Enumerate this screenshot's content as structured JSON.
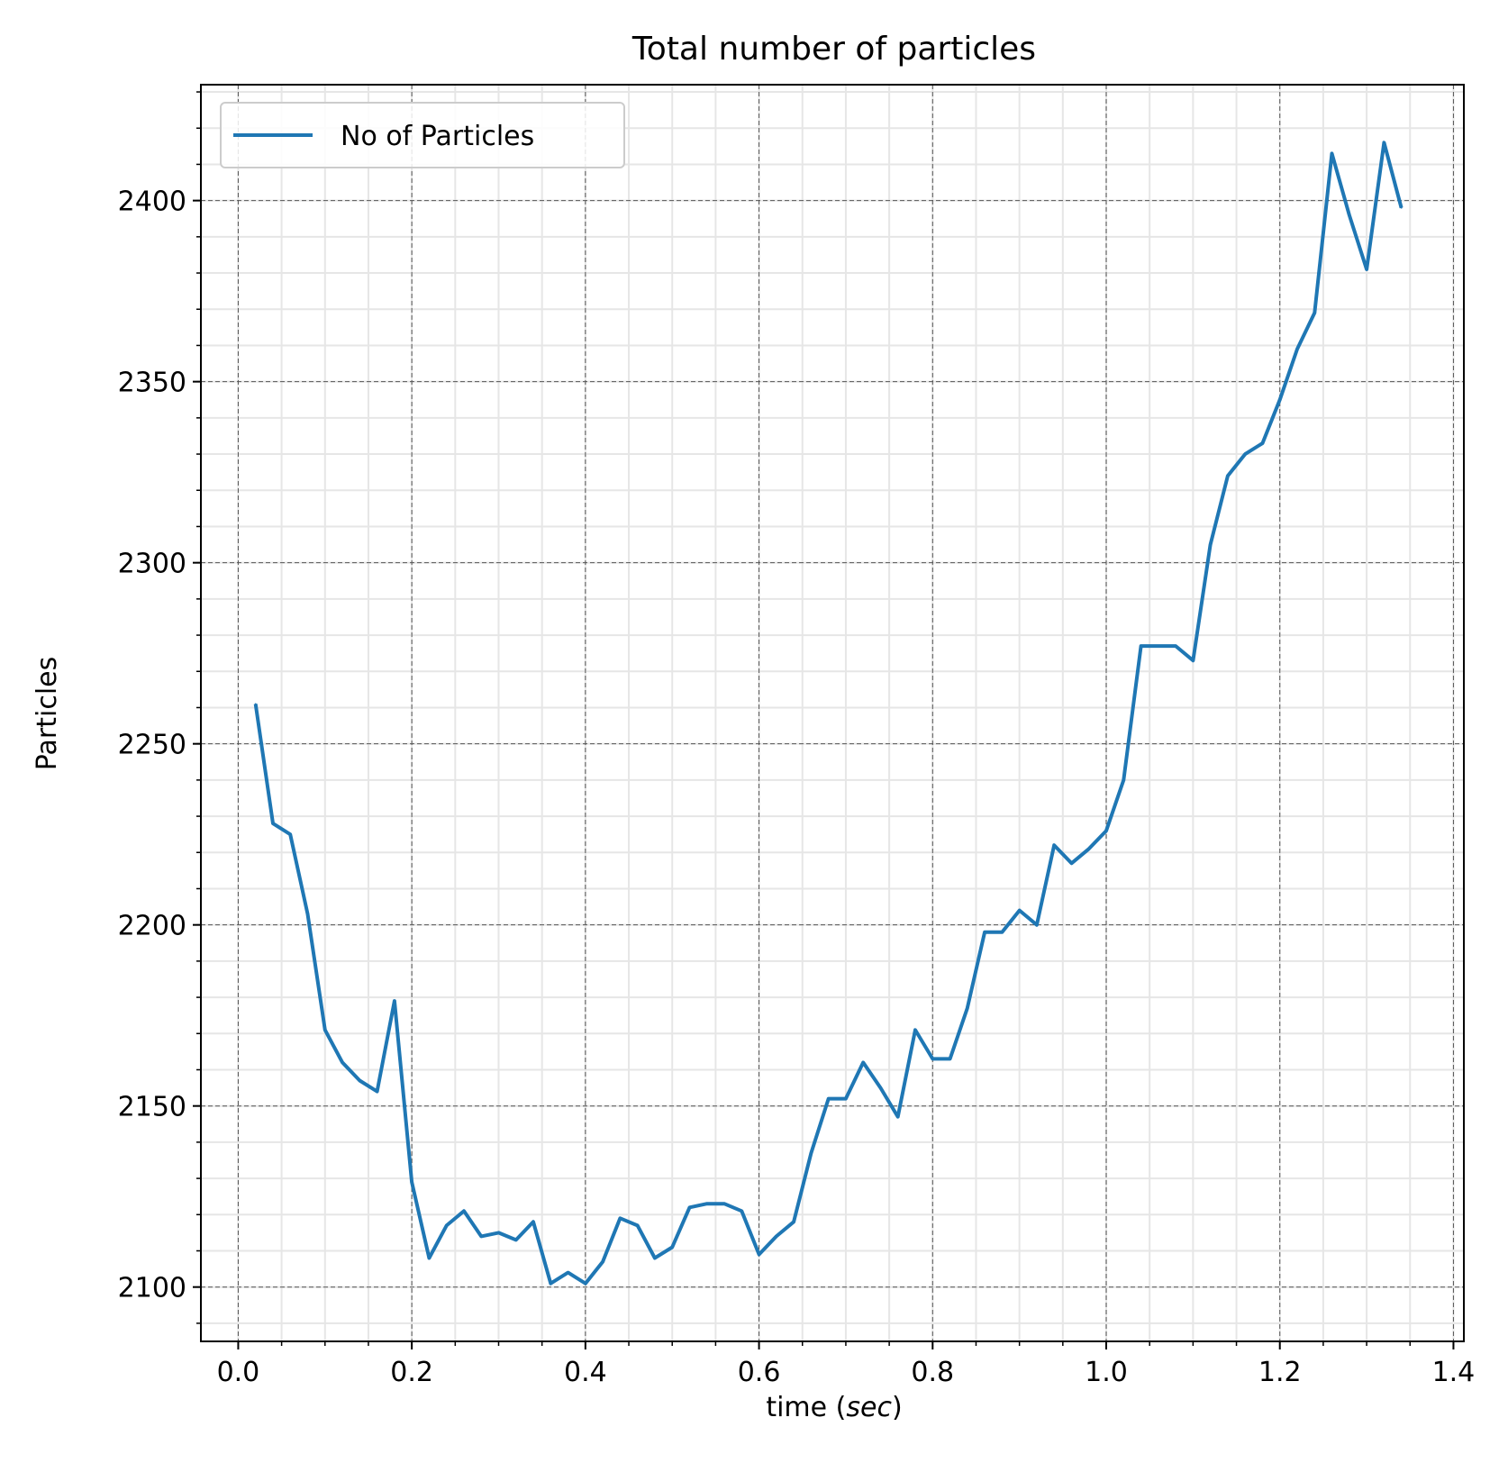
{
  "chart_data": {
    "type": "line",
    "title": "Total number of particles",
    "xlabel": "time",
    "xlabel_unit": "sec",
    "ylabel": "Particles",
    "xlim": [
      -0.043,
      1.412
    ],
    "ylim": [
      2085,
      2432
    ],
    "xticks": [
      0.0,
      0.2,
      0.4,
      0.6,
      0.8,
      1.0,
      1.2,
      1.4
    ],
    "xtick_labels": [
      "0.0",
      "0.2",
      "0.4",
      "0.6",
      "0.8",
      "1.0",
      "1.2",
      "1.4"
    ],
    "yticks": [
      2100,
      2150,
      2200,
      2250,
      2300,
      2350,
      2400
    ],
    "ytick_labels": [
      "2100",
      "2150",
      "2200",
      "2250",
      "2300",
      "2350",
      "2400"
    ],
    "x_minor_step": 0.05,
    "y_minor_step": 10,
    "grid": true,
    "legend_position": "top-left",
    "series": [
      {
        "name": "No of Particles",
        "color": "#1f77b4",
        "x": [
          0.02,
          0.04,
          0.06,
          0.08,
          0.1,
          0.12,
          0.14,
          0.16,
          0.18,
          0.2,
          0.22,
          0.24,
          0.26,
          0.28,
          0.3,
          0.32,
          0.34,
          0.36,
          0.38,
          0.4,
          0.42,
          0.44,
          0.46,
          0.48,
          0.5,
          0.52,
          0.54,
          0.56,
          0.58,
          0.6,
          0.62,
          0.64,
          0.66,
          0.68,
          0.7,
          0.72,
          0.74,
          0.76,
          0.78,
          0.8,
          0.82,
          0.84,
          0.86,
          0.88,
          0.9,
          0.92,
          0.94,
          0.96,
          0.98,
          1.0,
          1.02,
          1.04,
          1.06,
          1.08,
          1.1,
          1.12,
          1.14,
          1.16,
          1.18,
          1.2,
          1.22,
          1.24,
          1.26,
          1.28,
          1.3,
          1.32,
          1.34
        ],
        "y": [
          2261,
          2228,
          2225,
          2203,
          2171,
          2162,
          2157,
          2154,
          2179,
          2129,
          2108,
          2117,
          2121,
          2114,
          2115,
          2113,
          2118,
          2101,
          2104,
          2101,
          2107,
          2119,
          2117,
          2108,
          2111,
          2122,
          2123,
          2123,
          2121,
          2109,
          2114,
          2118,
          2137,
          2152,
          2152,
          2162,
          2155,
          2147,
          2171,
          2163,
          2163,
          2177,
          2198,
          2198,
          2204,
          2200,
          2222,
          2217,
          2221,
          2226,
          2240,
          2277,
          2277,
          2277,
          2273,
          2305,
          2324,
          2330,
          2333,
          2345,
          2359,
          2369,
          2413,
          2396,
          2381,
          2416,
          2398
        ]
      }
    ]
  }
}
